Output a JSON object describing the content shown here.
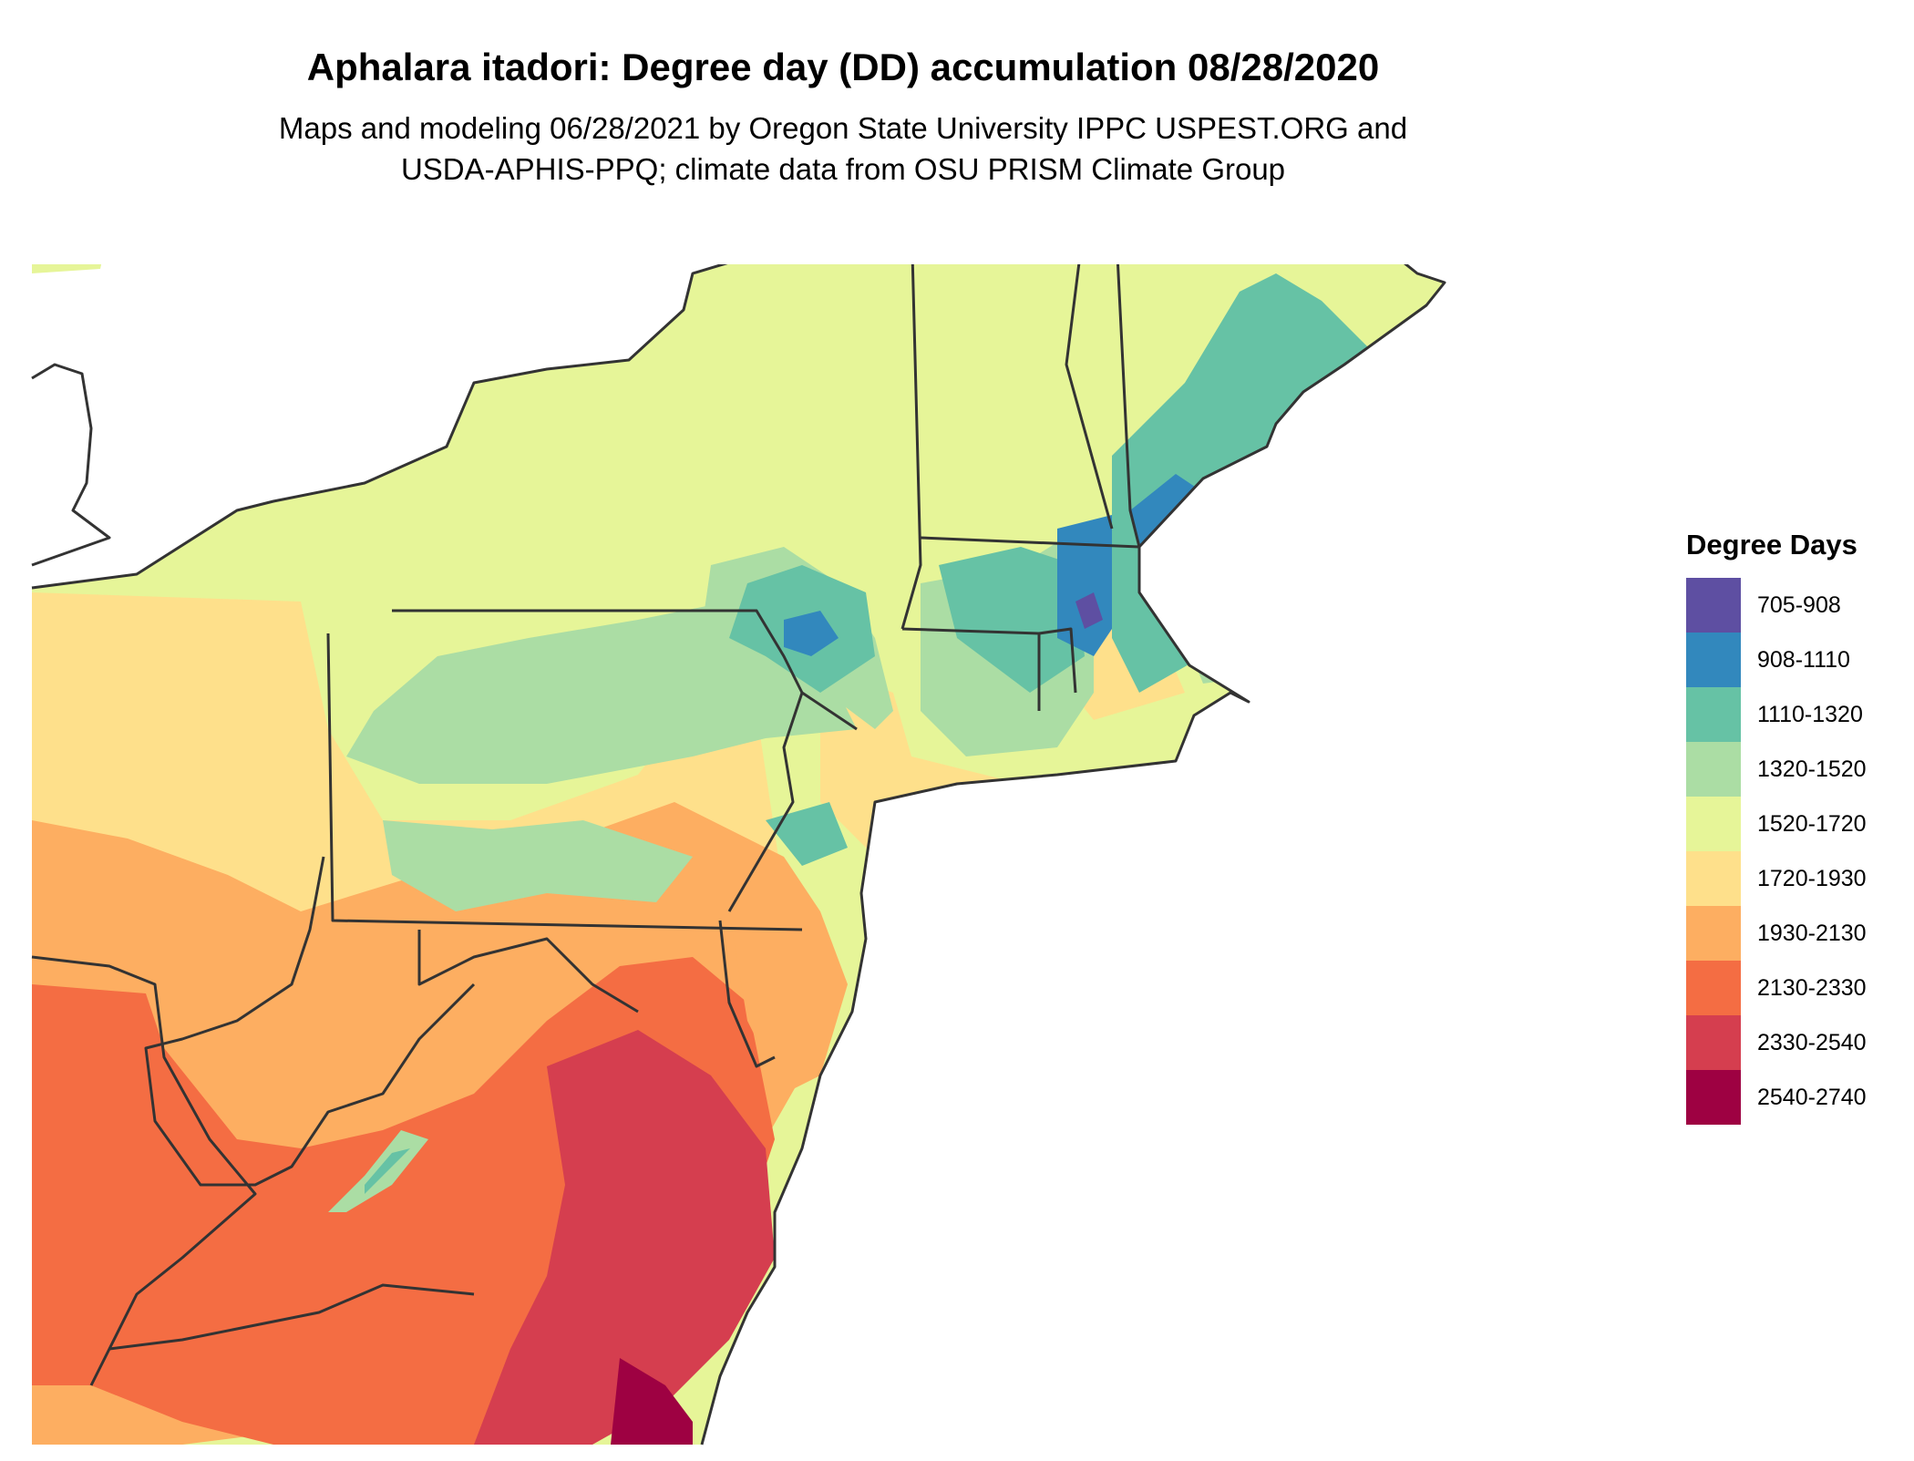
{
  "title": "Aphalara itadori: Degree day (DD) accumulation 08/28/2020",
  "subtitle_line1": "Maps and modeling 06/28/2021 by Oregon State University IPPC USPEST.ORG and",
  "subtitle_line2": "USDA-APHIS-PPQ; climate data from OSU PRISM Climate Group",
  "legend": {
    "title": "Degree Days",
    "classes": [
      {
        "label": "705-908",
        "color": "#5e4fa2"
      },
      {
        "label": "908-1110",
        "color": "#3288bd"
      },
      {
        "label": "1110-1320",
        "color": "#66c2a5"
      },
      {
        "label": "1320-1520",
        "color": "#abdda4"
      },
      {
        "label": "1520-1720",
        "color": "#e6f598"
      },
      {
        "label": "1720-1930",
        "color": "#fee08b"
      },
      {
        "label": "1930-2130",
        "color": "#fdae61"
      },
      {
        "label": "2130-2330",
        "color": "#f46d43"
      },
      {
        "label": "2330-2540",
        "color": "#d53e4f"
      },
      {
        "label": "2540-2740",
        "color": "#9e0142"
      }
    ]
  },
  "map": {
    "region": "Northeastern United States",
    "boundary_color": "#333333"
  }
}
